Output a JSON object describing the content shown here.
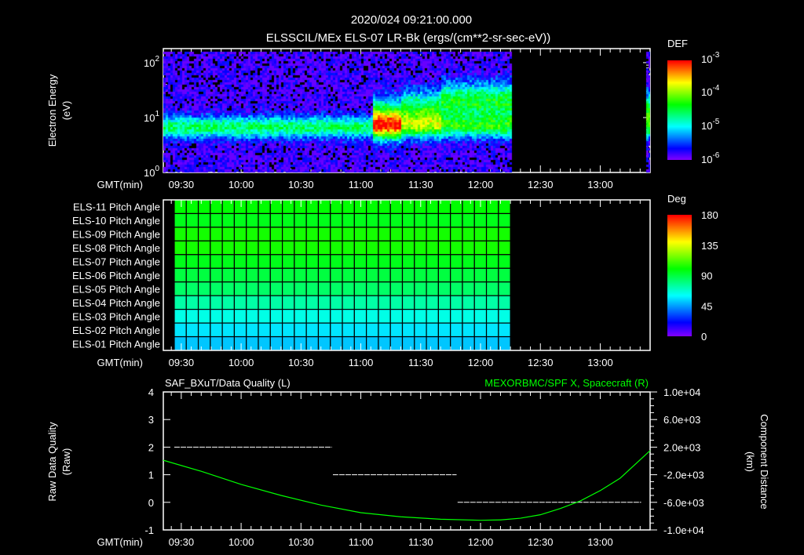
{
  "header": {
    "timestamp": "2020/024 09:21:00.000",
    "panel1_title": "ELSSCIL/MEx ELS-07 LR-Bk  (ergs/(cm**2-sr-sec-eV))"
  },
  "time_axis": {
    "label": "GMT(min)",
    "start_min": 561,
    "end_min": 805,
    "ticks": [
      "09:30",
      "10:00",
      "10:30",
      "11:00",
      "11:30",
      "12:00",
      "12:30",
      "13:00"
    ],
    "tick_values_min": [
      570,
      600,
      630,
      660,
      690,
      720,
      750,
      780
    ]
  },
  "chart_data": [
    {
      "type": "heatmap",
      "name": "electron-energy-spectrogram",
      "ylabel": "Electron Energy",
      "yunit": "(eV)",
      "yscale": "log",
      "ylim": [
        1,
        180
      ],
      "yticks": [
        "10^0",
        "10^1",
        "10^2"
      ],
      "ytick_values": [
        1,
        10,
        100
      ],
      "colorbar": {
        "title": "DEF",
        "scale": "log",
        "range": [
          1e-06,
          0.001
        ],
        "ticks": [
          "10^-3",
          "10^-4",
          "10^-5",
          "10^-6"
        ],
        "tick_values": [
          0.001,
          0.0001,
          1e-05,
          1e-06
        ]
      },
      "data_coverage_min": [
        [
          561,
          735
        ],
        [
          802,
          805
        ]
      ],
      "features": {
        "background_band_eV": [
          4,
          15
        ],
        "background_DEF": 1.2e-05,
        "enhancement_start_min": 665,
        "enhancement_peak_DEF": 6e-05
      }
    },
    {
      "type": "heatmap",
      "name": "pitch-angle-panel",
      "rows": [
        "ELS-11 Pitch Angle",
        "ELS-10 Pitch Angle",
        "ELS-09 Pitch Angle",
        "ELS-08 Pitch Angle",
        "ELS-07 Pitch Angle",
        "ELS-06 Pitch Angle",
        "ELS-05 Pitch Angle",
        "ELS-04 Pitch Angle",
        "ELS-03 Pitch Angle",
        "ELS-02 Pitch Angle",
        "ELS-01 Pitch Angle"
      ],
      "values_deg": [
        100,
        96,
        103,
        103,
        96,
        90,
        84,
        74,
        64,
        56,
        51
      ],
      "time_range_min": [
        566.5,
        735
      ],
      "columns": 28,
      "colorbar": {
        "title": "Deg",
        "range": [
          0,
          180
        ],
        "ticks": [
          "180",
          "135",
          "90",
          "45",
          "0"
        ],
        "tick_values": [
          180,
          135,
          90,
          45,
          0
        ]
      }
    },
    {
      "type": "line",
      "name": "data-quality-and-position",
      "title_left": "SAF_BXuT/Data Quality (L)",
      "title_right": "MEXORBMC/SPF X, Spacecraft (R)",
      "ylabel_left": "Raw Data Quality",
      "ylabel_left_unit": "(Raw)",
      "ylim_left": [
        -1,
        4
      ],
      "yticks_left": [
        "4",
        "3",
        "2",
        "1",
        "0",
        "-1"
      ],
      "ytick_values_left": [
        4,
        3,
        2,
        1,
        0,
        -1
      ],
      "ylabel_right": "Component Distance",
      "ylabel_right_unit": "(km)",
      "ylim_right": [
        -10000,
        10000
      ],
      "yticks_right": [
        "1.0e+04",
        "6.0e+03",
        "2.0e+03",
        "-2.0e+03",
        "-6.0e+03",
        "-1.0e+04"
      ],
      "ytick_values_right": [
        10000,
        6000,
        2000,
        -2000,
        -6000,
        -10000
      ],
      "series": [
        {
          "name": "Data Quality",
          "axis": "left",
          "color": "#ffffff",
          "segments": [
            {
              "x": [
                566.5,
                645.5
              ],
              "y": 2
            },
            {
              "x": [
                646,
                708
              ],
              "y": 1
            },
            {
              "x": [
                708.5,
                800.5
              ],
              "y": 0
            }
          ]
        },
        {
          "name": "SPF X",
          "axis": "right",
          "color": "#00ff00",
          "x": [
            561,
            580,
            600,
            620,
            640,
            660,
            680,
            700,
            720,
            730,
            740,
            750,
            760,
            770,
            780,
            790,
            805
          ],
          "y": [
            100,
            -1500,
            -3400,
            -5000,
            -6400,
            -7500,
            -8100,
            -8450,
            -8600,
            -8550,
            -8300,
            -7800,
            -6900,
            -5800,
            -4300,
            -2500,
            1500
          ]
        }
      ]
    }
  ],
  "colors": {
    "background": "#000000",
    "axes": "#ffffff",
    "spf_line": "#00ff00",
    "right_title": "#00ff00"
  }
}
